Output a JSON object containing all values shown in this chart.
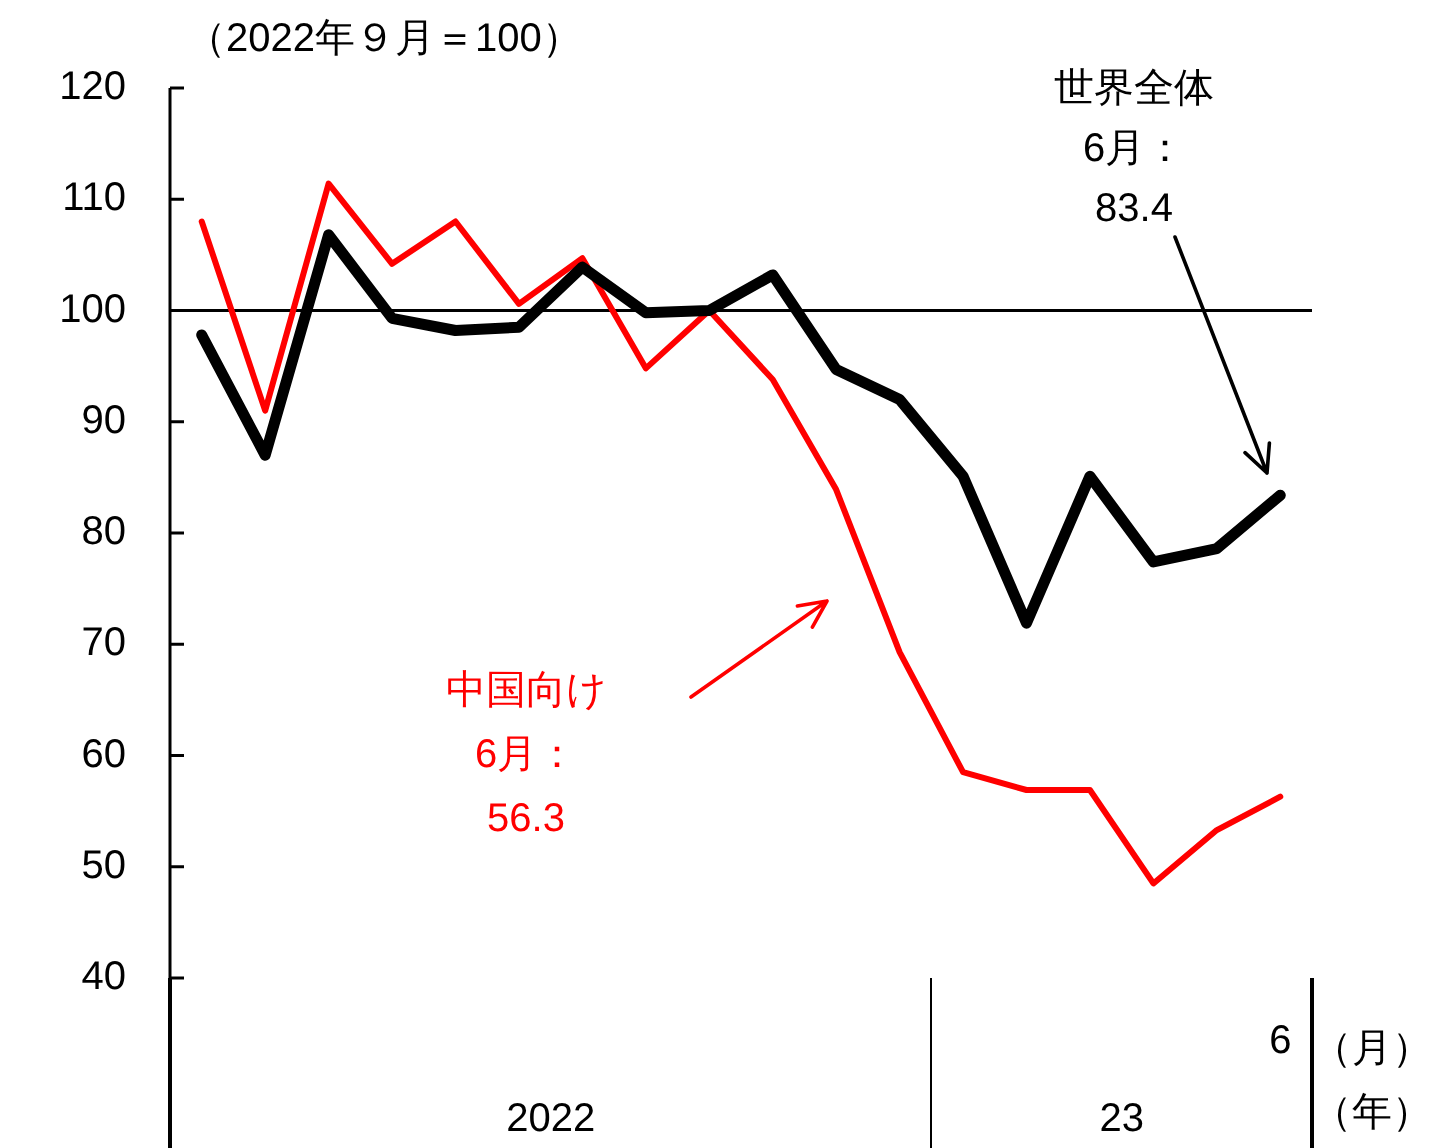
{
  "chart_data": {
    "type": "line",
    "ylabel": "（2022年９月＝100）",
    "xlabel": "（月）",
    "categories": [
      null,
      null,
      null,
      null,
      null,
      null,
      null,
      null,
      null,
      null,
      null,
      null,
      null,
      null,
      null,
      null,
      null,
      "6"
    ],
    "series": [
      {
        "color": "#000000",
        "values": [
          97.8,
          87,
          106.8,
          99.3,
          98.2,
          98.5,
          103.9,
          99.8,
          100,
          103.2,
          94.7,
          92,
          85.1,
          71.9,
          85.1,
          77.4,
          78.6,
          83.4
        ]
      },
      {
        "color": "#ff0000",
        "values": [
          108,
          91,
          111.4,
          104.2,
          108,
          100.6,
          104.7,
          94.8,
          100,
          93.8,
          83.9,
          69.3,
          58.5,
          56.9,
          56.9,
          48.5,
          53.3,
          56.3
        ]
      }
    ],
    "ylim": [
      40,
      120
    ],
    "yticks": [
      40,
      50,
      60,
      70,
      80,
      90,
      100,
      110,
      120
    ],
    "ref_lines": [
      {
        "axis": "y",
        "value": 100,
        "color": "#000000"
      }
    ],
    "marker": "none",
    "annotations": [
      "世界全体\n6月：\n83.4",
      "中国向け\n6月：\n56.3",
      "2022",
      "23",
      "（年）"
    ]
  }
}
